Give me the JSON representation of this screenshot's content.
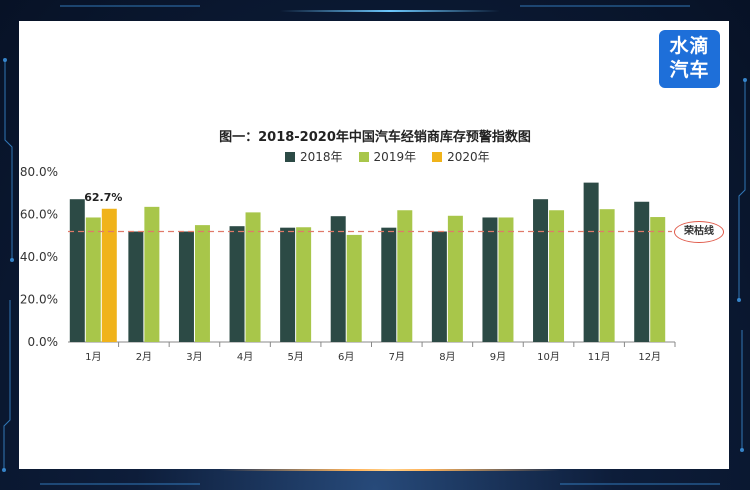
{
  "logo": {
    "line1": "水滴",
    "line2": "汽车"
  },
  "chart_data": {
    "type": "bar",
    "title": "图一：2018-2020年中国汽车经销商库存预警指数图",
    "categories": [
      "1月",
      "2月",
      "3月",
      "4月",
      "5月",
      "6月",
      "7月",
      "8月",
      "9月",
      "10月",
      "11月",
      "12月"
    ],
    "series": [
      {
        "name": "2018年",
        "color": "#2c4a45",
        "values": [
          67.2,
          52.0,
          52.0,
          54.5,
          53.8,
          59.2,
          53.8,
          52.0,
          58.6,
          67.2,
          75.0,
          66.0
        ]
      },
      {
        "name": "2019年",
        "color": "#a8c64a",
        "values": [
          58.6,
          63.6,
          55.0,
          61.0,
          54.0,
          50.4,
          62.0,
          59.4,
          58.6,
          62.0,
          62.5,
          58.8
        ]
      },
      {
        "name": "2020年",
        "color": "#f0b31a",
        "values": [
          62.7,
          null,
          null,
          null,
          null,
          null,
          null,
          null,
          null,
          null,
          null,
          null
        ]
      }
    ],
    "ylim": [
      0,
      80
    ],
    "yticks": [
      "0.0%",
      "20.0%",
      "40.0%",
      "60.0%",
      "80.0%"
    ],
    "reference_line": {
      "value": 52,
      "label": "荣枯线",
      "color": "#e07a6a"
    },
    "annotations": [
      {
        "text": "62.7%",
        "category": "1月",
        "series": "2020年"
      }
    ],
    "legend_position": "top"
  }
}
